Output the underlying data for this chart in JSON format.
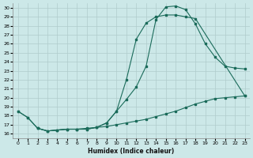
{
  "xlabel": "Humidex (Indice chaleur)",
  "bg_color": "#cce8e8",
  "grid_color": "#b0cccc",
  "line_color": "#1a6b5a",
  "xlim": [
    -0.5,
    23.5
  ],
  "ylim": [
    15.5,
    30.5
  ],
  "yticks": [
    16,
    17,
    18,
    19,
    20,
    21,
    22,
    23,
    24,
    25,
    26,
    27,
    28,
    29,
    30
  ],
  "xticks": [
    0,
    1,
    2,
    3,
    4,
    5,
    6,
    7,
    8,
    9,
    10,
    11,
    12,
    13,
    14,
    15,
    16,
    17,
    18,
    19,
    20,
    21,
    22,
    23
  ],
  "curveA_x": [
    0,
    1,
    2,
    3,
    4,
    5,
    6,
    7,
    8,
    9,
    10,
    11,
    12,
    13,
    14,
    15,
    16,
    17,
    18,
    23
  ],
  "curveA_y": [
    18.5,
    17.8,
    16.6,
    16.3,
    16.4,
    16.5,
    16.5,
    16.5,
    16.7,
    17.2,
    18.5,
    22.0,
    26.5,
    28.3,
    29.0,
    29.2,
    29.2,
    29.0,
    28.8,
    20.2
  ],
  "curveB_x": [
    0,
    1,
    2,
    3,
    4,
    5,
    6,
    7,
    8,
    9,
    10,
    11,
    12,
    13,
    14,
    15,
    16,
    17,
    18,
    19,
    20,
    21,
    22,
    23
  ],
  "curveB_y": [
    18.5,
    17.8,
    16.6,
    16.3,
    16.4,
    16.5,
    16.5,
    16.5,
    16.7,
    17.2,
    18.5,
    19.8,
    21.2,
    23.5,
    28.7,
    30.1,
    30.2,
    29.8,
    28.2,
    26.0,
    24.5,
    23.5,
    23.3,
    23.2
  ],
  "curveC_x": [
    2,
    3,
    4,
    5,
    6,
    7,
    8,
    9,
    10,
    11,
    12,
    13,
    14,
    15,
    16,
    17,
    18,
    19,
    20,
    21,
    22,
    23
  ],
  "curveC_y": [
    16.6,
    16.3,
    16.4,
    16.5,
    16.5,
    16.6,
    16.7,
    16.8,
    17.0,
    17.2,
    17.4,
    17.6,
    17.9,
    18.2,
    18.5,
    18.9,
    19.3,
    19.6,
    19.9,
    20.0,
    20.1,
    20.2
  ]
}
